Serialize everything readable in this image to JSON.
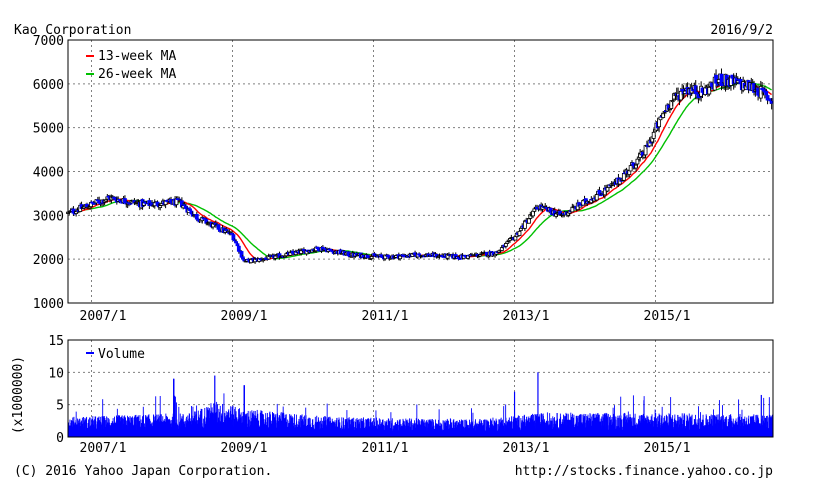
{
  "header": {
    "company": "Kao Corporation",
    "date": "2016/9/2"
  },
  "footer": {
    "copyright": "(C) 2016 Yahoo Japan Corporation.",
    "url": "http://stocks.finance.yahoo.co.jp"
  },
  "colors": {
    "ma13": "#ff0000",
    "ma26": "#00c000",
    "volume": "#0000ff",
    "candle_up": "#ffffff",
    "candle_down": "#0000ff",
    "grid": "#808080"
  },
  "chart_data": [
    {
      "type": "candlestick",
      "title": "Kao Corporation",
      "xlabel": "",
      "ylabel": "",
      "x_ticks": [
        "2007/1",
        "2009/1",
        "2011/1",
        "2013/1",
        "2015/1"
      ],
      "y_ticks": [
        "1000",
        "2000",
        "3000",
        "4000",
        "5000",
        "6000",
        "7000"
      ],
      "ylim": [
        1000,
        7000
      ],
      "grid": true,
      "legend_position": "top-left",
      "legend": [
        "13-week MA",
        "26-week MA"
      ],
      "price_anchors": [
        {
          "x": "2006/9",
          "y": 3050
        },
        {
          "x": "2007/4",
          "y": 3400
        },
        {
          "x": "2007/10",
          "y": 3250
        },
        {
          "x": "2008/4",
          "y": 3300
        },
        {
          "x": "2008/7",
          "y": 2950
        },
        {
          "x": "2008/10",
          "y": 2750
        },
        {
          "x": "2009/1",
          "y": 2550
        },
        {
          "x": "2009/3",
          "y": 1950
        },
        {
          "x": "2009/6",
          "y": 2000
        },
        {
          "x": "2009/10",
          "y": 2100
        },
        {
          "x": "2010/4",
          "y": 2250
        },
        {
          "x": "2010/9",
          "y": 2100
        },
        {
          "x": "2011/3",
          "y": 2050
        },
        {
          "x": "2011/9",
          "y": 2100
        },
        {
          "x": "2012/4",
          "y": 2050
        },
        {
          "x": "2012/10",
          "y": 2150
        },
        {
          "x": "2013/1",
          "y": 2500
        },
        {
          "x": "2013/5",
          "y": 3200
        },
        {
          "x": "2013/9",
          "y": 3000
        },
        {
          "x": "2014/1",
          "y": 3300
        },
        {
          "x": "2014/6",
          "y": 3700
        },
        {
          "x": "2014/11",
          "y": 4400
        },
        {
          "x": "2015/3",
          "y": 5500
        },
        {
          "x": "2015/6",
          "y": 5900
        },
        {
          "x": "2015/9",
          "y": 5800
        },
        {
          "x": "2015/12",
          "y": 6100
        },
        {
          "x": "2016/3",
          "y": 6000
        },
        {
          "x": "2016/6",
          "y": 5900
        },
        {
          "x": "2016/9",
          "y": 5600
        }
      ]
    },
    {
      "type": "bar",
      "title": "",
      "xlabel": "",
      "ylabel": "(x1000000)",
      "x_ticks": [
        "2007/1",
        "2009/1",
        "2011/1",
        "2013/1",
        "2015/1"
      ],
      "y_ticks": [
        "0",
        "5",
        "10",
        "15"
      ],
      "ylim": [
        0,
        15
      ],
      "grid": true,
      "legend_position": "top-left",
      "legend": [
        "Volume"
      ],
      "volume_baseline": [
        {
          "x": "2006/9",
          "y": 2.5
        },
        {
          "x": "2008/6",
          "y": 3.0
        },
        {
          "x": "2008/10",
          "y": 4.5
        },
        {
          "x": "2009/3",
          "y": 3.5
        },
        {
          "x": "2010/6",
          "y": 2.5
        },
        {
          "x": "2012/6",
          "y": 2.2
        },
        {
          "x": "2013/6",
          "y": 3.0
        },
        {
          "x": "2015/1",
          "y": 3.0
        },
        {
          "x": "2016/9",
          "y": 2.8
        }
      ],
      "volume_peaks": [
        {
          "x": "2008/3",
          "y": 9.0
        },
        {
          "x": "2008/10",
          "y": 9.5
        },
        {
          "x": "2009/3",
          "y": 8.0
        },
        {
          "x": "2013/1",
          "y": 7.0
        },
        {
          "x": "2013/5",
          "y": 10.0
        },
        {
          "x": "2016/7",
          "y": 6.5
        }
      ]
    }
  ]
}
